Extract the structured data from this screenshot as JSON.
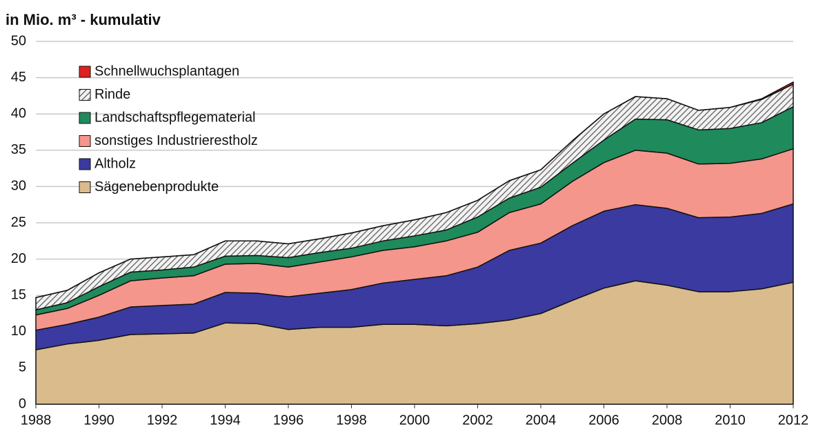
{
  "chart_data": {
    "type": "stacked-area",
    "title": "in Mio. m³ - kumulativ",
    "x": [
      1988,
      1989,
      1990,
      1991,
      1992,
      1993,
      1994,
      1995,
      1996,
      1997,
      1998,
      1999,
      2000,
      2001,
      2002,
      2003,
      2004,
      2005,
      2006,
      2007,
      2008,
      2009,
      2010,
      2011,
      2012
    ],
    "xlim": [
      1988,
      2012
    ],
    "xticks": [
      1988,
      1990,
      1992,
      1994,
      1996,
      1998,
      2000,
      2002,
      2004,
      2006,
      2008,
      2010,
      2012
    ],
    "ylim": [
      0,
      50
    ],
    "yticks": [
      0,
      5,
      10,
      15,
      20,
      25,
      30,
      35,
      40,
      45,
      50
    ],
    "grid": true,
    "legend": "upper left",
    "series": [
      {
        "name": "Sägenebenprodukte",
        "color": "#d9bb8c",
        "values": [
          7.5,
          8.3,
          8.8,
          9.6,
          9.7,
          9.8,
          11.2,
          11.1,
          10.3,
          10.6,
          10.6,
          11.0,
          11.0,
          10.8,
          11.1,
          11.6,
          12.5,
          14.3,
          16.0,
          17.0,
          16.4,
          15.5,
          15.5,
          15.9,
          16.8
        ]
      },
      {
        "name": "Altholz",
        "color": "#3b3aa0",
        "values": [
          2.7,
          2.7,
          3.2,
          3.8,
          3.9,
          4.0,
          4.2,
          4.2,
          4.5,
          4.7,
          5.2,
          5.7,
          6.2,
          6.9,
          7.8,
          9.6,
          9.7,
          10.3,
          10.6,
          10.5,
          10.6,
          10.2,
          10.3,
          10.4,
          10.8
        ]
      },
      {
        "name": "sonstiges Industrierestholz",
        "color": "#f4968b",
        "values": [
          2.1,
          2.2,
          3.0,
          3.6,
          3.8,
          3.9,
          3.9,
          4.1,
          4.1,
          4.3,
          4.5,
          4.5,
          4.5,
          4.8,
          4.8,
          5.2,
          5.4,
          6.1,
          6.7,
          7.5,
          7.6,
          7.4,
          7.4,
          7.5,
          7.6
        ]
      },
      {
        "name": "Landschaftspflegematerial",
        "color": "#1f8a5b",
        "values": [
          0.7,
          0.8,
          1.2,
          1.2,
          1.1,
          1.2,
          1.1,
          1.1,
          1.3,
          1.3,
          1.2,
          1.3,
          1.5,
          1.5,
          2.1,
          2.0,
          2.3,
          2.5,
          3.1,
          4.3,
          4.6,
          4.7,
          4.8,
          5.0,
          5.8
        ]
      },
      {
        "name": "Rinde",
        "color": "#7a7a7a",
        "hatch": true,
        "values": [
          1.7,
          1.7,
          1.9,
          1.8,
          1.8,
          1.7,
          2.1,
          2.0,
          1.9,
          1.9,
          2.1,
          2.1,
          2.2,
          2.4,
          2.3,
          2.4,
          2.4,
          3.1,
          3.6,
          3.1,
          2.9,
          2.7,
          2.9,
          3.2,
          3.1
        ]
      },
      {
        "name": "Schnellwuchsplantagen",
        "color": "#e02020",
        "values": [
          0,
          0,
          0,
          0,
          0,
          0,
          0,
          0,
          0,
          0,
          0,
          0,
          0,
          0,
          0,
          0,
          0,
          0,
          0,
          0,
          0,
          0,
          0,
          0.1,
          0.3
        ]
      }
    ]
  }
}
